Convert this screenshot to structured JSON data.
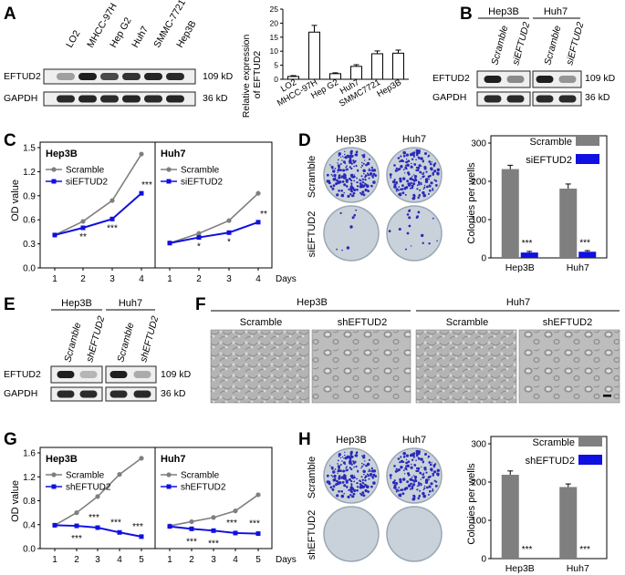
{
  "panels": {
    "A": {
      "label": "A"
    },
    "B": {
      "label": "B"
    },
    "C": {
      "label": "C"
    },
    "D": {
      "label": "D"
    },
    "E": {
      "label": "E"
    },
    "F": {
      "label": "F"
    },
    "G": {
      "label": "G"
    },
    "H": {
      "label": "H"
    }
  },
  "blot_a": {
    "lanes": [
      "LO2",
      "MHCC-97H",
      "Hep G2",
      "Huh7",
      "SMMC-7721",
      "Hep3B"
    ],
    "rows": [
      {
        "name": "EFTUD2",
        "size": "109 kD",
        "intensity": [
          0.35,
          0.95,
          0.75,
          0.85,
          0.92,
          0.9
        ]
      },
      {
        "name": "GAPDH",
        "size": "36 kD",
        "intensity": [
          0.9,
          0.92,
          0.9,
          0.92,
          0.9,
          0.92
        ]
      }
    ]
  },
  "blot_b": {
    "groups": [
      "Hep3B",
      "Huh7"
    ],
    "lanes": [
      "Scramble",
      "siEFTUD2",
      "Scramble",
      "siEFTUD2"
    ],
    "rows": [
      {
        "name": "EFTUD2",
        "size": "109 kD",
        "intensity": [
          0.95,
          0.45,
          0.95,
          0.4
        ]
      },
      {
        "name": "GAPDH",
        "size": "36 kD",
        "intensity": [
          0.9,
          0.9,
          0.9,
          0.9
        ]
      }
    ]
  },
  "blot_e": {
    "groups": [
      "Hep3B",
      "Huh7"
    ],
    "lanes": [
      "Scramble",
      "shEFTUD2",
      "Scramble",
      "shEFTUD2"
    ],
    "rows": [
      {
        "name": "EFTUD2",
        "size": "109 kD",
        "intensity": [
          0.95,
          0.25,
          0.95,
          0.3
        ]
      },
      {
        "name": "GAPDH",
        "size": "36 kD",
        "intensity": [
          0.9,
          0.9,
          0.9,
          0.9
        ]
      }
    ]
  },
  "micro_f": {
    "groups": [
      "Hep3B",
      "Huh7"
    ],
    "labels": [
      "Scramble",
      "shEFTUD2",
      "Scramble",
      "shEFTUD2"
    ]
  },
  "colony_d": {
    "cols": [
      "Hep3B",
      "Huh7"
    ],
    "rows": [
      "Scramble",
      "siEFTUD2"
    ]
  },
  "colony_h": {
    "cols": [
      "Hep3B",
      "Huh7"
    ],
    "rows": [
      "Scramble",
      "shEFTUD2"
    ]
  },
  "colors": {
    "gray": "#7f7f7f",
    "blue": "#1010e0",
    "dish": "#c9d2da",
    "dish_edge": "#9aa7b3"
  },
  "chart_data": [
    {
      "id": "A_bar",
      "type": "bar",
      "ylabel": "Relative expression of EFTUD2",
      "ylim": [
        0,
        25
      ],
      "yticks": [
        0,
        5,
        10,
        15,
        20,
        25
      ],
      "categories": [
        "LO2",
        "MHCC-97H",
        "Hep G2",
        "Huh7",
        "SMMC7721",
        "Hep3B"
      ],
      "values": [
        1,
        16.8,
        2,
        4.6,
        9.1,
        9.3
      ],
      "errors": [
        0.3,
        2.4,
        0.3,
        0.6,
        1.0,
        1.1
      ]
    },
    {
      "id": "C_line",
      "type": "line",
      "ylabel": "OD value",
      "ylim": [
        0,
        1.5
      ],
      "yticks": [
        "0.0",
        "0.3",
        "0.6",
        "0.9",
        "1.2",
        "1.5"
      ],
      "xlabel": "Days",
      "x": [
        1,
        2,
        3,
        4
      ],
      "subplots": [
        {
          "title": "Hep3B",
          "series": [
            {
              "name": "Scramble",
              "values": [
                0.41,
                0.58,
                0.84,
                1.42
              ]
            },
            {
              "name": "siEFTUD2",
              "values": [
                0.41,
                0.5,
                0.61,
                0.93
              ]
            }
          ],
          "stars": [
            "",
            "**",
            "***",
            "***"
          ]
        },
        {
          "title": "Huh7",
          "series": [
            {
              "name": "Scramble",
              "values": [
                0.31,
                0.43,
                0.59,
                0.93
              ]
            },
            {
              "name": "siEFTUD2",
              "values": [
                0.31,
                0.38,
                0.44,
                0.57
              ]
            }
          ],
          "stars": [
            "",
            "*",
            "*",
            "**"
          ]
        }
      ]
    },
    {
      "id": "D_bar",
      "type": "bar",
      "ylabel": "Colonies per wells",
      "ylim": [
        0,
        300
      ],
      "yticks": [
        0,
        100,
        200,
        300
      ],
      "categories": [
        "Hep3B",
        "Huh7"
      ],
      "series": [
        {
          "name": "Scramble",
          "values": [
            232,
            181
          ],
          "errors": [
            10,
            12
          ]
        },
        {
          "name": "siEFTUD2",
          "values": [
            14,
            16
          ],
          "errors": [
            3,
            3
          ]
        }
      ],
      "stars": [
        "***",
        "***"
      ]
    },
    {
      "id": "G_line",
      "type": "line",
      "ylabel": "OD value",
      "ylim": [
        0,
        1.6
      ],
      "yticks": [
        "0.0",
        "0.4",
        "0.8",
        "1.2",
        "1.6"
      ],
      "xlabel": "Days",
      "x": [
        1,
        2,
        3,
        4,
        5
      ],
      "subplots": [
        {
          "title": "Hep3B",
          "series": [
            {
              "name": "Scramble",
              "values": [
                0.39,
                0.6,
                0.87,
                1.24,
                1.51
              ]
            },
            {
              "name": "shEFTUD2",
              "values": [
                0.39,
                0.38,
                0.35,
                0.27,
                0.2
              ]
            }
          ],
          "stars_above": [
            "",
            "",
            "***",
            "***",
            "***"
          ],
          "stars_below": [
            "",
            "***",
            "",
            "",
            ""
          ]
        },
        {
          "title": "Huh7",
          "series": [
            {
              "name": "Scramble",
              "values": [
                0.38,
                0.45,
                0.52,
                0.63,
                0.9
              ]
            },
            {
              "name": "shEFTUD2",
              "values": [
                0.37,
                0.33,
                0.3,
                0.26,
                0.25
              ]
            }
          ],
          "stars_above": [
            "",
            "",
            "",
            "***",
            "***"
          ],
          "stars_below": [
            "",
            "***",
            "***",
            "",
            ""
          ]
        }
      ]
    },
    {
      "id": "H_bar",
      "type": "bar",
      "ylabel": "Colonies per wells",
      "ylim": [
        0,
        300
      ],
      "yticks": [
        0,
        100,
        200,
        300
      ],
      "categories": [
        "Hep3B",
        "Huh7"
      ],
      "series": [
        {
          "name": "Scramble",
          "values": [
            219,
            187
          ],
          "errors": [
            10,
            8
          ]
        },
        {
          "name": "shEFTUD2",
          "values": [
            0,
            0
          ],
          "errors": [
            0,
            0
          ]
        }
      ],
      "stars": [
        "***",
        "***"
      ]
    }
  ]
}
